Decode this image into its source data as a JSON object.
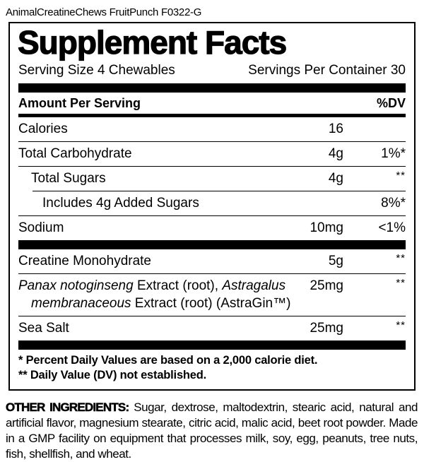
{
  "colors": {
    "text": "#000000",
    "background": "#ffffff"
  },
  "page": {
    "product_code": "AnimalCreatineChews FruitPunch F0322-G"
  },
  "facts": {
    "title": "Supplement Facts",
    "serving_size": "Serving Size 4 Chewables",
    "servings_per_container": "Servings Per Container 30",
    "column_headers": {
      "left": "Amount Per Serving",
      "right": "%DV"
    },
    "rows": [
      {
        "rule_above": "none",
        "lines": [
          {
            "indent": 0,
            "segments": [
              {
                "text": "Calories",
                "italic": false
              }
            ]
          }
        ],
        "amount": "16",
        "dv": "",
        "dv_sup": false
      },
      {
        "rule_above": "full",
        "lines": [
          {
            "indent": 0,
            "segments": [
              {
                "text": "Total Carbohydrate",
                "italic": false
              }
            ]
          }
        ],
        "amount": "4g",
        "dv": "1%*",
        "dv_sup": false
      },
      {
        "rule_above": "full",
        "lines": [
          {
            "indent": 1,
            "segments": [
              {
                "text": "Total Sugars",
                "italic": false
              }
            ]
          }
        ],
        "amount": "4g",
        "dv": "**",
        "dv_sup": true
      },
      {
        "rule_above": "indent",
        "lines": [
          {
            "indent": 2,
            "segments": [
              {
                "text": "Includes 4g Added Sugars",
                "italic": false
              }
            ]
          }
        ],
        "amount": "",
        "dv": "8%*",
        "dv_sup": false
      },
      {
        "rule_above": "full",
        "lines": [
          {
            "indent": 0,
            "segments": [
              {
                "text": "Sodium",
                "italic": false
              }
            ]
          }
        ],
        "amount": "10mg",
        "dv": "<1%",
        "dv_sup": false
      },
      {
        "rule_above": "bar",
        "lines": [
          {
            "indent": 0,
            "segments": [
              {
                "text": "Creatine Monohydrate",
                "italic": false
              }
            ]
          }
        ],
        "amount": "5g",
        "dv": "**",
        "dv_sup": true
      },
      {
        "rule_above": "full",
        "lines": [
          {
            "indent": 0,
            "segments": [
              {
                "text": "Panax notoginseng",
                "italic": true
              },
              {
                "text": " Extract (root), ",
                "italic": false
              },
              {
                "text": "Astragalus",
                "italic": true
              }
            ]
          },
          {
            "indent": 1,
            "segments": [
              {
                "text": "membranaceous",
                "italic": true
              },
              {
                "text": " Extract (root) (AstraGin™)",
                "italic": false
              }
            ]
          }
        ],
        "amount": "25mg",
        "dv": "**",
        "dv_sup": true
      },
      {
        "rule_above": "full",
        "lines": [
          {
            "indent": 0,
            "segments": [
              {
                "text": "Sea Salt",
                "italic": false
              }
            ]
          }
        ],
        "amount": "25mg",
        "dv": "**",
        "dv_sup": true
      }
    ],
    "footnotes": [
      "* Percent Daily Values are based on a 2,000 calorie diet.",
      "** Daily Value (DV) not established."
    ]
  },
  "other_ingredients": {
    "label": "OTHER INGREDIENTS:",
    "text": "Sugar, dextrose, maltodextrin, stearic acid, natural and artificial flavor, magnesium stearate, citric acid, malic acid, beet root powder. Made in a GMP facility on equipment that processes milk, soy, egg, peanuts, tree nuts, fish, shellfish, and wheat."
  }
}
